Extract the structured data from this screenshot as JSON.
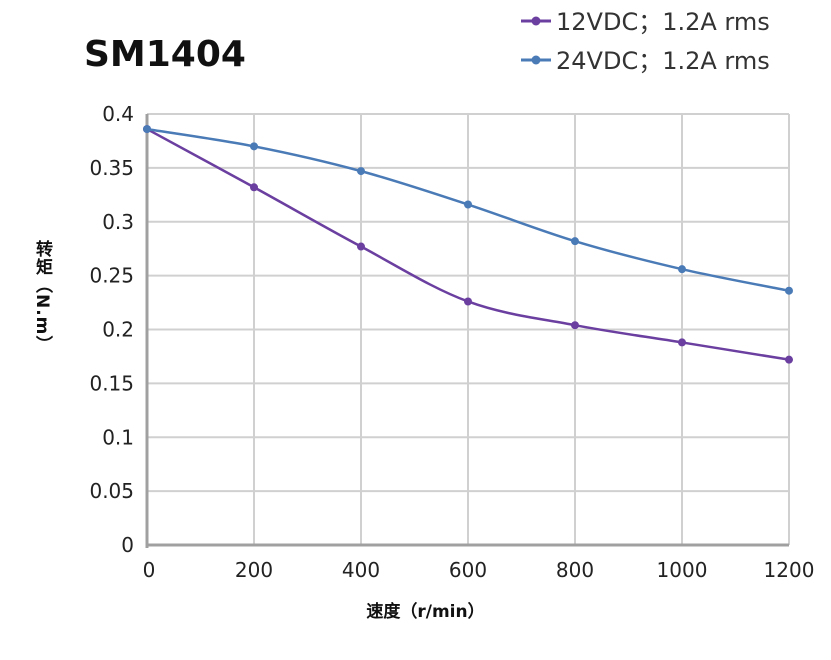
{
  "chart_data": {
    "type": "line",
    "title": "SM1404",
    "xlabel": "速度（r/min）",
    "ylabel": "转矩（N.m）",
    "xlim": [
      0,
      1200
    ],
    "ylim": [
      0,
      0.4
    ],
    "xticks": [
      "0",
      "200",
      "400",
      "600",
      "800",
      "1000",
      "1200"
    ],
    "yticks": [
      "0",
      "0.05",
      "0.1",
      "0.15",
      "0.2",
      "0.25",
      "0.3",
      "0.35",
      "0.4"
    ],
    "grid": true,
    "legend_position": "top-right",
    "x": [
      0,
      200,
      400,
      600,
      800,
      1000,
      1200
    ],
    "series": [
      {
        "name": "12VDC；1.2A rms",
        "color": "#6b3fa0",
        "values": [
          0.386,
          0.332,
          0.277,
          0.226,
          0.204,
          0.188,
          0.172
        ]
      },
      {
        "name": "24VDC；1.2A rms",
        "color": "#4a7bb7",
        "values": [
          0.386,
          0.37,
          0.347,
          0.316,
          0.282,
          0.256,
          0.236
        ]
      }
    ]
  }
}
